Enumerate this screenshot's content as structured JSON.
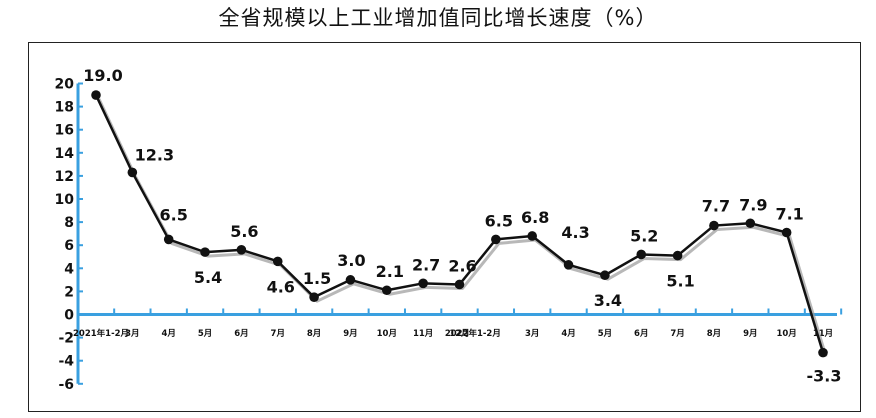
{
  "chart_data": {
    "type": "line",
    "title": "全省规模以上工业增加值同比增长速度（%）",
    "categories": [
      "2021年1-2月",
      "3月",
      "4月",
      "5月",
      "6月",
      "7月",
      "8月",
      "9月",
      "10月",
      "11月",
      "12月",
      "2022年1-2月",
      "3月",
      "4月",
      "5月",
      "6月",
      "7月",
      "8月",
      "9月",
      "10月",
      "11月"
    ],
    "series": [
      {
        "values": [
          19.0,
          12.3,
          6.5,
          5.4,
          5.6,
          4.6,
          1.5,
          3.0,
          2.1,
          2.7,
          2.6,
          6.5,
          6.8,
          4.3,
          3.4,
          5.2,
          5.1,
          7.7,
          7.9,
          7.1,
          -3.3
        ]
      }
    ],
    "data_labels": [
      "19.0",
      "12.3",
      "6.5",
      "5.4",
      "5.6",
      "4.6",
      "1.5",
      "3.0",
      "2.1",
      "2.7",
      "2.6",
      "6.5",
      "6.8",
      "4.3",
      "3.4",
      "5.2",
      "5.1",
      "7.7",
      "7.9",
      "7.1",
      "-3.3"
    ],
    "yticks": [
      "20",
      "18",
      "16",
      "14",
      "12",
      "10",
      "8",
      "6",
      "4",
      "2",
      "0",
      "-2",
      "-4",
      "-6"
    ],
    "ylim": [
      -6,
      20
    ],
    "xlabel": "",
    "ylabel": "",
    "grid": false,
    "colors": {
      "line": "#111111",
      "marker": "#111111",
      "axis": "#3aa0e0",
      "shadow": "#9a9a9a"
    }
  }
}
